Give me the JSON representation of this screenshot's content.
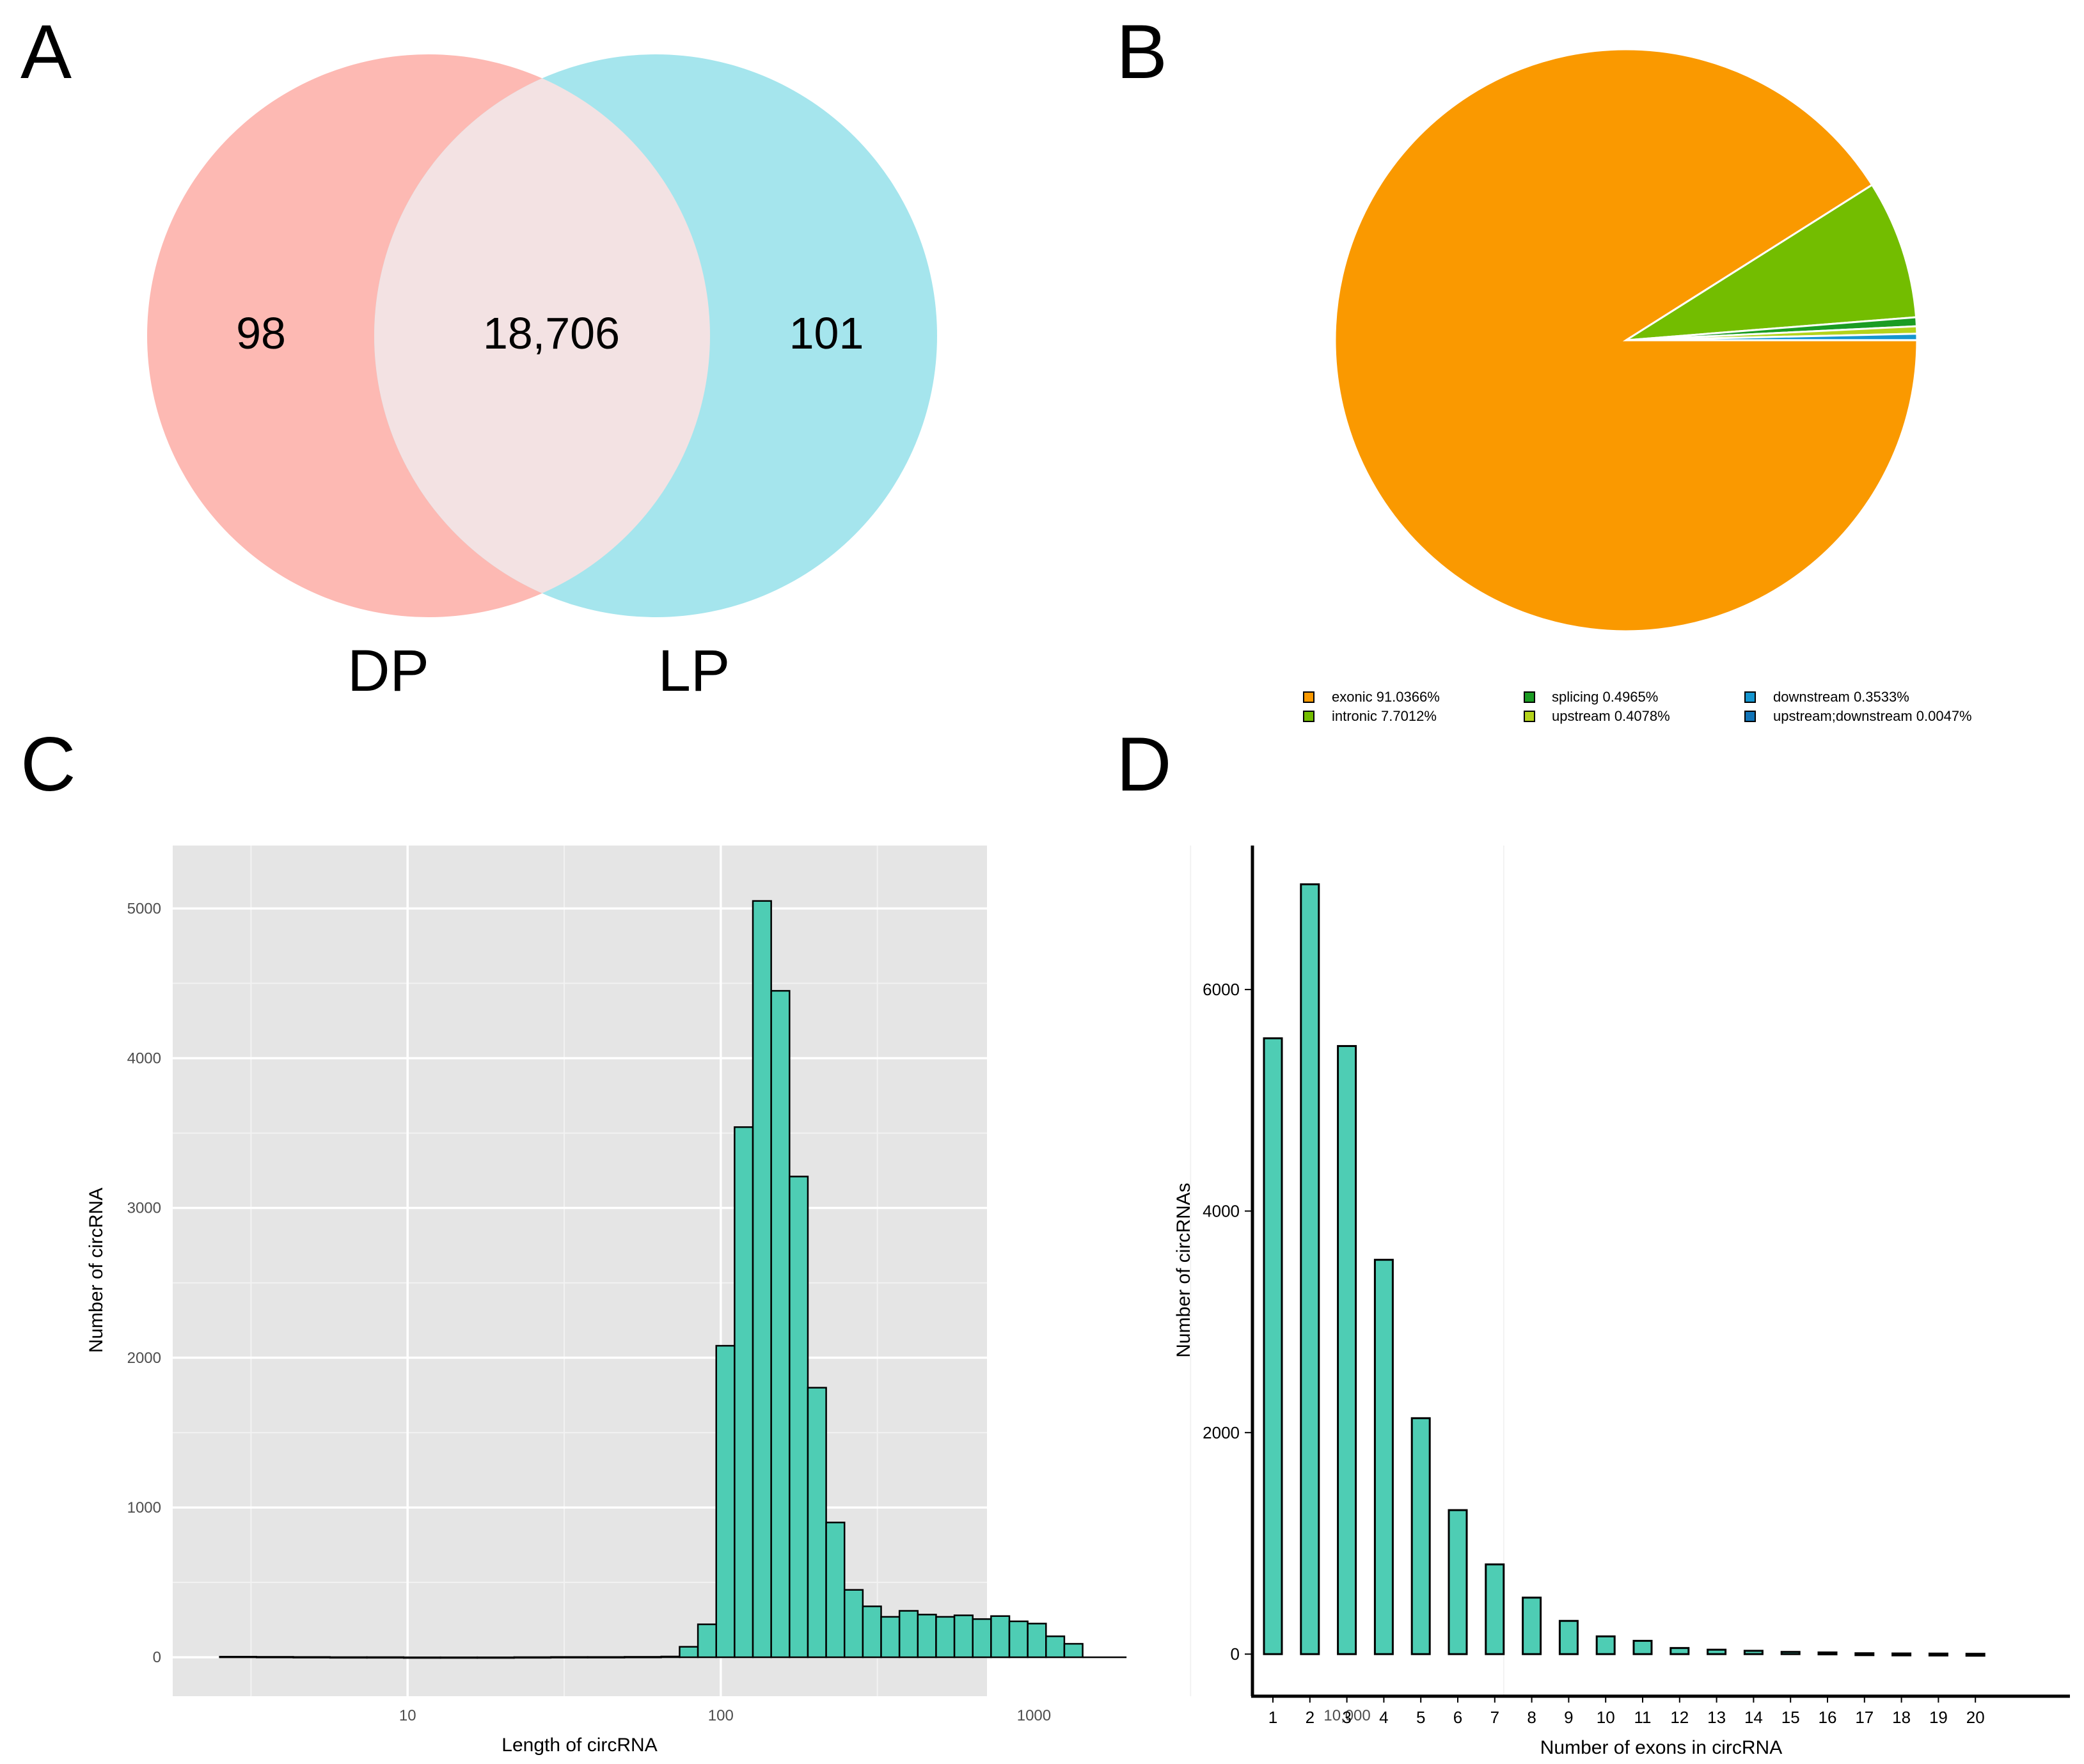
{
  "panel_labels": [
    "A",
    "B",
    "C",
    "D"
  ],
  "chart_data": [
    {
      "type": "venn",
      "sets": [
        "DP",
        "LP"
      ],
      "values": {
        "DP_only": "98",
        "both": "18,706",
        "LP_only": "101"
      },
      "colors": {
        "DP": "#fdb9b3",
        "LP": "#a5e5ed",
        "both": "#f3e2e3"
      }
    },
    {
      "type": "pie",
      "slices": [
        {
          "label": "exonic 91.0366%",
          "value": 91.0366,
          "color": "#fa9900"
        },
        {
          "label": "intronic 7.7012%",
          "value": 7.7012,
          "color": "#73bd00"
        },
        {
          "label": "splicing 0.4965%",
          "value": 0.4965,
          "color": "#1b9c23"
        },
        {
          "label": "upstream 0.4078%",
          "value": 0.4078,
          "color": "#b4d31b"
        },
        {
          "label": "downstream 0.3533%",
          "value": 0.3533,
          "color": "#1696cf"
        },
        {
          "label": "upstream;downstream 0.0047%",
          "value": 0.0047,
          "color": "#1174b7"
        }
      ],
      "legend_placement": "bottom"
    },
    {
      "type": "bar",
      "subtype": "histogram",
      "xscale": "log10",
      "xlabel": "Length of circRNA",
      "ylabel": "Number of circRNA",
      "xticks": [
        10,
        100,
        1000,
        10000
      ],
      "xtick_labels": [
        "10",
        "100",
        "1000",
        "10,000"
      ],
      "yticks": [
        0,
        1000,
        2000,
        3000,
        4000,
        5000
      ],
      "yrange": [
        -260,
        5420
      ],
      "xrange_log10": [
        0.25,
        2.85
      ],
      "grid": true,
      "bar_color": "#4ecdb4",
      "bins_log10": [
        0.3,
        0.44,
        0.58,
        0.72,
        0.86,
        1.0,
        1.14,
        1.28,
        1.42,
        1.56,
        1.7,
        1.84,
        1.98,
        2.12,
        2.26,
        2.4,
        2.54,
        2.68,
        2.82
      ],
      "bins_log_start": 1.81,
      "bins_log_width": 0.0585,
      "values": [
        5,
        70,
        220,
        2080,
        3540,
        5050,
        4450,
        3210,
        1800,
        900,
        450,
        340,
        270,
        310,
        285,
        270,
        280,
        255,
        275,
        240,
        225,
        140,
        90
      ],
      "tail_values": [
        5,
        4,
        3,
        2,
        2,
        1,
        1,
        1,
        2,
        3,
        3,
        4
      ]
    },
    {
      "type": "bar",
      "xlabel": "Number of exons in circRNA",
      "ylabel": "Number of circRNAs",
      "categories": [
        "1",
        "2",
        "3",
        "4",
        "5",
        "6",
        "7",
        "8",
        "9",
        "10",
        "11",
        "12",
        "13",
        "14",
        "15",
        "16",
        "17",
        "18",
        "19",
        "20"
      ],
      "values": [
        5560,
        6950,
        5490,
        3560,
        2130,
        1300,
        810,
        510,
        300,
        160,
        120,
        55,
        40,
        30,
        20,
        15,
        8,
        6,
        5,
        3
      ],
      "yticks": [
        0,
        2000,
        4000,
        6000
      ],
      "yrange": [
        -380,
        7300
      ],
      "grid": false,
      "bar_color": "#4ecdb4"
    }
  ]
}
